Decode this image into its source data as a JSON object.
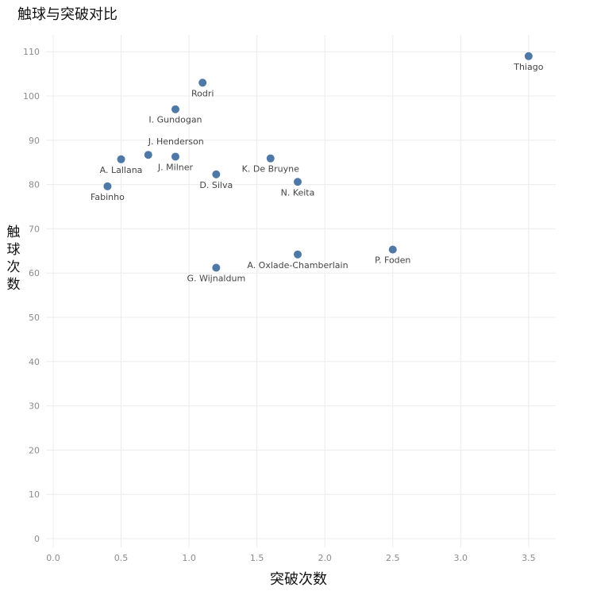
{
  "chart_data": {
    "type": "scatter",
    "title": "触球与突破对比",
    "xlabel": "突破次数",
    "ylabel": "触球次数",
    "xlim": [
      0,
      3.5
    ],
    "ylim": [
      0,
      110
    ],
    "xticks": [
      "0.0",
      "0.5",
      "1.0",
      "1.5",
      "2.0",
      "2.5",
      "3.0",
      "3.5"
    ],
    "yticks": [
      "0",
      "10",
      "20",
      "30",
      "40",
      "50",
      "60",
      "70",
      "80",
      "90",
      "100",
      "110"
    ],
    "grid": true,
    "point_color": "#4e79a7",
    "points": [
      {
        "label": "Thiago",
        "x": 3.5,
        "y": 109
      },
      {
        "label": "Rodri",
        "x": 1.1,
        "y": 103
      },
      {
        "label": "I. Gundogan",
        "x": 0.9,
        "y": 97
      },
      {
        "label": "J. Henderson",
        "x": 0.7,
        "y": 86.7
      },
      {
        "label": "J. Milner",
        "x": 0.9,
        "y": 86.3
      },
      {
        "label": "A. Lallana",
        "x": 0.5,
        "y": 85.7
      },
      {
        "label": "K. De Bruyne",
        "x": 1.6,
        "y": 85.9
      },
      {
        "label": "D. Silva",
        "x": 1.2,
        "y": 82.3
      },
      {
        "label": "N. Keita",
        "x": 1.8,
        "y": 80.6
      },
      {
        "label": "Fabinho",
        "x": 0.4,
        "y": 79.6
      },
      {
        "label": "P. Foden",
        "x": 2.5,
        "y": 65.3
      },
      {
        "label": "A. Oxlade-Chamberlain",
        "x": 1.8,
        "y": 64.2
      },
      {
        "label": "G. Wijnaldum",
        "x": 1.2,
        "y": 61.2
      }
    ]
  }
}
